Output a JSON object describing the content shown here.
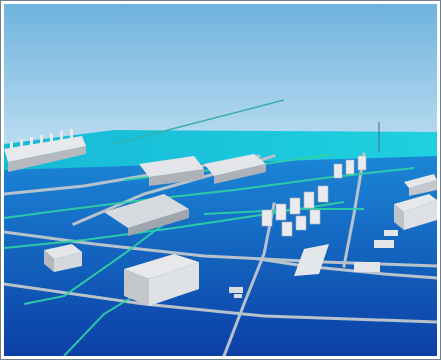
{
  "image": {
    "kind": "3d-industrial-plant-rendering",
    "text": []
  },
  "colors": {
    "sky_top": "#6fb3dd",
    "sky_bottom": "#b9dcf1",
    "ground_far": "#1b86d6",
    "ground_near": "#0c3fa6",
    "water_band": "#1cc6d9",
    "road": "#a9b4bf",
    "pipe_green": "#2fd3a6",
    "building_light": "#e3e5e8",
    "building_shadow": "#aeb2b8"
  }
}
